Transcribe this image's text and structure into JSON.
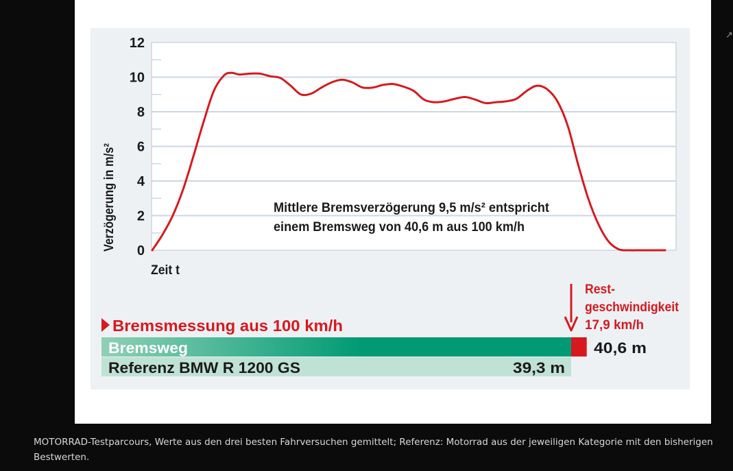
{
  "caption": "MOTORRAD-Testparcours, Werte aus den drei besten Fahrversuchen gemittelt; Referenz: Motorrad aus der jeweiligen Kategorie mit den bisherigen Bestwerten.",
  "expand_icon": "arrow-up-right-icon",
  "colors": {
    "curve": "#d7191f",
    "grid": "#cdd6e4",
    "panel": "#eef1f4",
    "heading": "#d7191f",
    "bar_main_start": "#8fd0b6",
    "bar_main_end": "#009b74",
    "bar_ref": "#bfe2d4",
    "rest_segment": "#d7191f"
  },
  "chart_data": [
    {
      "type": "line",
      "ylabel": "Verzögerung in m/s²",
      "xlabel": "Zeit t",
      "ylim": [
        0,
        12
      ],
      "yticks": [
        0,
        2,
        4,
        6,
        8,
        10,
        12
      ],
      "grid": true,
      "annotation": [
        "Mittlere Bremsverzögerung 9,5 m/s² entspricht",
        "einem Bremsweg von 40,6 m aus 100 km/h"
      ],
      "series": [
        {
          "x": [
            0,
            2,
            4,
            6,
            8,
            10,
            12,
            14,
            15.5,
            17,
            19,
            21,
            23,
            25,
            27,
            29,
            31,
            33,
            35,
            37,
            39,
            41,
            43,
            45,
            47,
            49,
            51,
            53,
            55,
            57,
            59,
            61,
            63,
            65,
            67,
            69,
            71,
            73,
            75,
            77,
            79,
            81,
            83,
            85,
            87,
            89,
            91,
            93,
            95,
            97,
            99,
            100
          ],
          "y": [
            0,
            0.9,
            2.0,
            3.5,
            5.4,
            7.4,
            9.2,
            10.1,
            10.25,
            10.15,
            10.2,
            10.2,
            10.05,
            9.95,
            9.5,
            9.0,
            9.05,
            9.4,
            9.7,
            9.85,
            9.7,
            9.4,
            9.4,
            9.55,
            9.6,
            9.45,
            9.2,
            8.7,
            8.55,
            8.6,
            8.75,
            8.85,
            8.7,
            8.5,
            8.55,
            8.6,
            8.75,
            9.2,
            9.5,
            9.3,
            8.6,
            7.2,
            5.0,
            3.0,
            1.5,
            0.5,
            0.05,
            0,
            0,
            0,
            0,
            0
          ]
        }
      ]
    },
    {
      "type": "bar",
      "title": "Bremsmessung aus 100 km/h",
      "categories": [
        "Bremsweg",
        "Referenz BMW R 1200 GS"
      ],
      "values": [
        40.6,
        39.3
      ],
      "value_labels": [
        "40,6 m",
        "39,3 m"
      ],
      "unit": "m",
      "rest_speed": {
        "label": [
          "Rest-",
          "geschwindigkeit",
          "17,9 km/h"
        ],
        "value": 17.9,
        "unit": "km/h"
      }
    }
  ]
}
